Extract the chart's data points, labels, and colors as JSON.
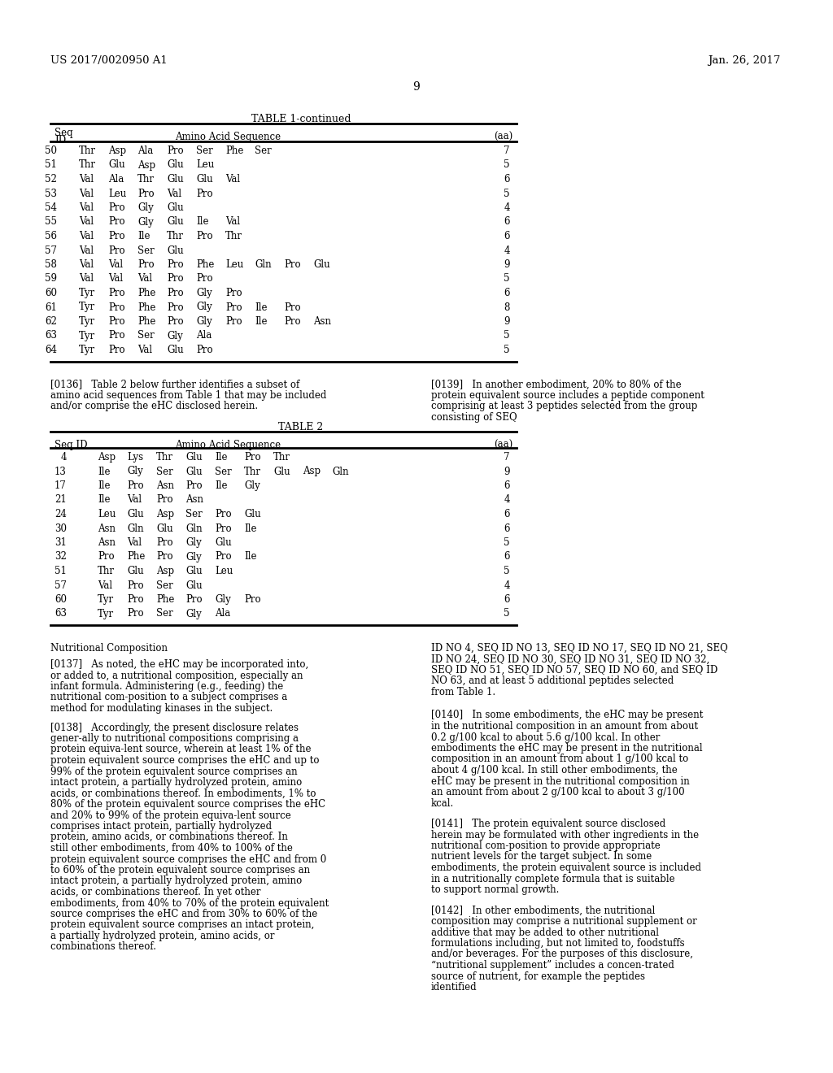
{
  "header_left": "US 2017/0020950 A1",
  "header_right": "Jan. 26, 2017",
  "page_number": "9",
  "table1_title": "TABLE 1-continued",
  "table1_headers": [
    "Seq\nID",
    "Amino Acid Sequence",
    "(aa)"
  ],
  "table1_rows": [
    [
      "50",
      "Thr  Asp  Ala  Pro  Ser  Phe  Ser",
      "7"
    ],
    [
      "51",
      "Thr  Glu  Asp  Glu  Leu",
      "5"
    ],
    [
      "52",
      "Val  Ala  Thr  Glu  Glu  Val",
      "6"
    ],
    [
      "53",
      "Val  Leu  Pro  Val  Pro",
      "5"
    ],
    [
      "54",
      "Val  Pro  Gly  Glu",
      "4"
    ],
    [
      "55",
      "Val  Pro  Gly  Glu  Ile  Val",
      "6"
    ],
    [
      "56",
      "Val  Pro  Ile  Thr  Pro  Thr",
      "6"
    ],
    [
      "57",
      "Val  Pro  Ser  Glu",
      "4"
    ],
    [
      "58",
      "Val  Val  Pro  Pro  Phe  Leu  Gln  Pro  Glu",
      "9"
    ],
    [
      "59",
      "Val  Val  Val  Pro  Pro",
      "5"
    ],
    [
      "60",
      "Tyr  Pro  Phe  Pro  Gly  Pro",
      "6"
    ],
    [
      "61",
      "Tyr  Pro  Phe  Pro  Gly  Pro  Ile  Pro",
      "8"
    ],
    [
      "62",
      "Tyr  Pro  Phe  Pro  Gly  Pro  Ile  Pro  Asn",
      "9"
    ],
    [
      "63",
      "Tyr  Pro  Ser  Gly  Ala",
      "5"
    ],
    [
      "64",
      "Tyr  Pro  Val  Glu  Pro",
      "5"
    ]
  ],
  "table2_title": "TABLE 2",
  "table2_headers": [
    "Seq ID",
    "Amino Acid Sequence",
    "(aa)"
  ],
  "table2_rows": [
    [
      "4",
      "Asp  Lys  Thr  Glu  Ile  Pro  Thr",
      "7"
    ],
    [
      "13",
      "Ile  Gly  Ser  Glu  Ser  Thr  Glu  Asp  Gln",
      "9"
    ],
    [
      "17",
      "Ile  Pro  Asn  Pro  Ile  Gly",
      "6"
    ],
    [
      "21",
      "Ile  Val  Pro  Asn",
      "4"
    ],
    [
      "24",
      "Leu  Glu  Asp  Ser  Pro  Glu",
      "6"
    ],
    [
      "30",
      "Asn  Gln  Glu  Gln  Pro  Ile",
      "6"
    ],
    [
      "31",
      "Asn  Val  Pro  Gly  Glu",
      "5"
    ],
    [
      "32",
      "Pro  Phe  Pro  Gly  Pro  Ile",
      "6"
    ],
    [
      "51",
      "Thr  Glu  Asp  Glu  Leu",
      "5"
    ],
    [
      "57",
      "Val  Pro  Ser  Glu",
      "4"
    ],
    [
      "60",
      "Tyr  Pro  Phe  Pro  Gly  Pro",
      "6"
    ],
    [
      "63",
      "Tyr  Pro  Ser  Gly  Ala",
      "5"
    ]
  ],
  "para136": "[0136]   Table 2 below further identifies a subset of amino acid sequences from Table 1 that may be included and/or comprise the eHC disclosed herein.",
  "para139": "[0139]   In another embodiment, 20% to 80% of the protein equivalent source includes a peptide component comprising at least 3 peptides selected from the group consisting of SEQ",
  "section_title": "Nutritional Composition",
  "para137": "[0137]   As noted, the eHC may be incorporated into, or added to, a nutritional composition, especially an infant formula. Administering (e.g., feeding) the nutritional com-position to a subject comprises a method for modulating kinases in the subject.",
  "para138": "[0138]   Accordingly, the present disclosure relates gener-ally to nutritional compositions comprising a protein equiva-lent source, wherein at least 1% of the protein equivalent source comprises the eHC and up to 99% of the protein equivalent source comprises an intact protein, a partially hydrolyzed protein, amino acids, or combinations thereof. In embodiments, 1% to 80% of the protein equivalent source comprises the eHC and 20% to 99% of the protein equiva-lent source comprises intact protein, partially hydrolyzed protein, amino acids, or combinations thereof. In still other embodiments, from 40% to 100% of the protein equivalent source comprises the eHC and from 0 to 60% of the protein equivalent source comprises an intact protein, a partially hydrolyzed protein, amino acids, or combinations thereof. In yet other embodiments, from 40% to 70% of the protein equivalent source comprises the eHC and from 30% to 60% of the protein equivalent source comprises an intact protein, a partially hydrolyzed protein, amino acids, or combinations thereof.",
  "para139_right": "ID NO 4, SEQ ID NO 13, SEQ ID NO 17, SEQ ID NO 21, SEQ ID NO 24, SEQ ID NO 30, SEQ ID NO 31, SEQ ID NO 32, SEQ ID NO 51, SEQ ID NO 57, SEQ ID NO 60, and SEQ ID NO 63, and at least 5 additional peptides selected from Table 1.",
  "para140": "[0140]   In some embodiments, the eHC may be present in the nutritional composition in an amount from about 0.2 g/100 kcal to about 5.6 g/100 kcal. In other embodiments the eHC may be present in the nutritional composition in an amount from about 1 g/100 kcal to about 4 g/100 kcal. In still other embodiments, the eHC may be present in the nutritional composition in an amount from about 2 g/100 kcal to about 3 g/100 kcal.",
  "para141": "[0141]   The protein equivalent source disclosed herein may be formulated with other ingredients in the nutritional com-position to provide appropriate nutrient levels for the target subject. In some embodiments, the protein equivalent source is included in a nutritionally complete formula that is suitable to support normal growth.",
  "para142": "[0142]   In other embodiments, the nutritional composition may comprise a nutritional supplement or additive that may be added to other nutritional formulations including, but not limited to, foodstuffs and/or beverages. For the purposes of this disclosure, “nutritional supplement” includes a concen-trated source of nutrient, for example the peptides identified",
  "bg_color": "#ffffff",
  "text_color": "#000000",
  "font_size": 8.5
}
